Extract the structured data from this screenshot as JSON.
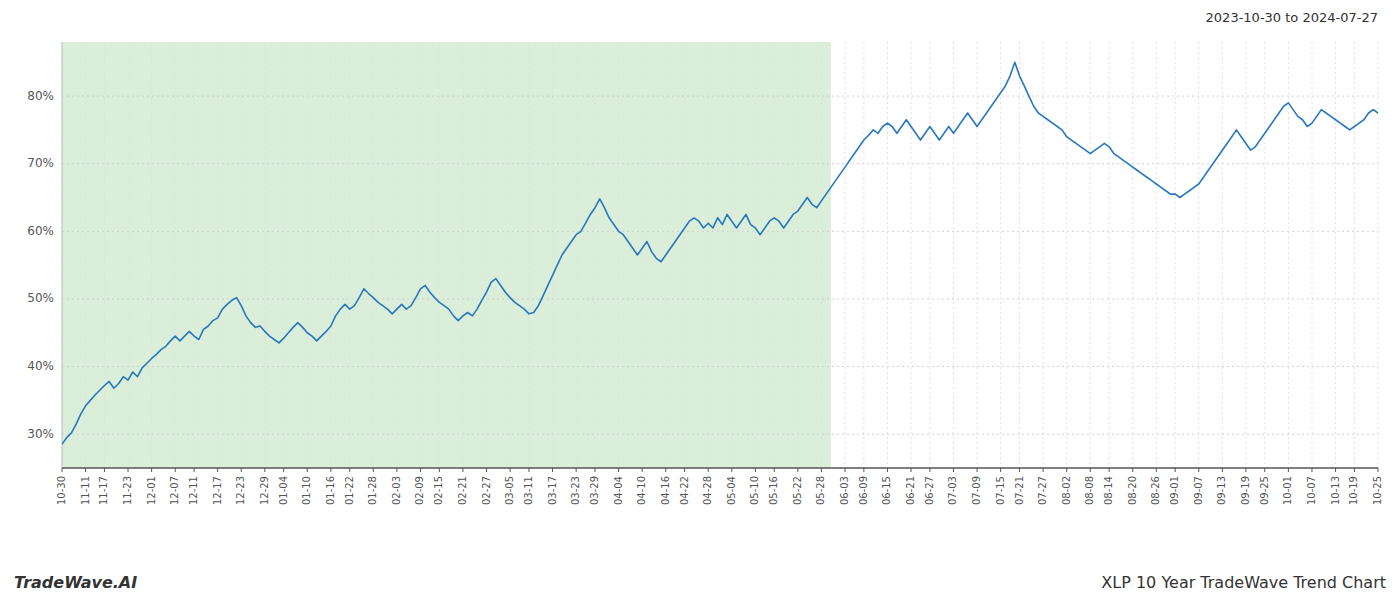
{
  "chart_data": {
    "type": "line",
    "title": "2023-10-30 to 2024-07-27",
    "annotations": [
      "TradeWave.AI",
      "XLP 10 Year TradeWave Trend Chart"
    ],
    "color": "#2878be",
    "grid": true,
    "ylim": [
      25,
      88
    ],
    "yticks": [
      {
        "value": 30,
        "label": "30%"
      },
      {
        "value": 40,
        "label": "40%"
      },
      {
        "value": 50,
        "label": "50%"
      },
      {
        "value": 60,
        "label": "60%"
      },
      {
        "value": 70,
        "label": "70%"
      },
      {
        "value": 80,
        "label": "80%"
      }
    ],
    "shaded": {
      "from": 0,
      "to": 163,
      "color": "#daeeda"
    },
    "categories": [
      "10-30",
      null,
      null,
      null,
      null,
      "11-11",
      null,
      null,
      null,
      "11-17",
      null,
      null,
      null,
      null,
      "11-23",
      null,
      null,
      null,
      null,
      "12-01",
      null,
      null,
      null,
      null,
      "12-07",
      null,
      null,
      null,
      "12-11",
      null,
      null,
      null,
      null,
      "12-17",
      null,
      null,
      null,
      null,
      "12-23",
      null,
      null,
      null,
      null,
      "12-29",
      null,
      null,
      null,
      "01-04",
      null,
      null,
      null,
      null,
      "01-10",
      null,
      null,
      null,
      null,
      "01-16",
      null,
      null,
      null,
      "01-22",
      null,
      null,
      null,
      null,
      "01-28",
      null,
      null,
      null,
      null,
      "02-03",
      null,
      null,
      null,
      null,
      "02-09",
      null,
      null,
      null,
      "02-15",
      null,
      null,
      null,
      null,
      "02-21",
      null,
      null,
      null,
      null,
      "02-27",
      null,
      null,
      null,
      null,
      "03-05",
      null,
      null,
      null,
      "03-11",
      null,
      null,
      null,
      null,
      "03-17",
      null,
      null,
      null,
      null,
      "03-23",
      null,
      null,
      null,
      "03-29",
      null,
      null,
      null,
      null,
      "04-04",
      null,
      null,
      null,
      null,
      "04-10",
      null,
      null,
      null,
      null,
      "04-16",
      null,
      null,
      null,
      "04-22",
      null,
      null,
      null,
      null,
      "04-28",
      null,
      null,
      null,
      null,
      "05-04",
      null,
      null,
      null,
      null,
      "05-10",
      null,
      null,
      null,
      "05-16",
      null,
      null,
      null,
      null,
      "05-22",
      null,
      null,
      null,
      null,
      "05-28",
      null,
      null,
      null,
      null,
      "06-03",
      null,
      null,
      null,
      "06-09",
      null,
      null,
      null,
      null,
      "06-15",
      null,
      null,
      null,
      null,
      "06-21",
      null,
      null,
      null,
      "06-27",
      null,
      null,
      null,
      null,
      "07-03",
      null,
      null,
      null,
      null,
      "07-09",
      null,
      null,
      null,
      null,
      "07-15",
      null,
      null,
      null,
      "07-21",
      null,
      null,
      null,
      null,
      "07-27",
      null,
      null,
      null,
      null,
      "08-02",
      null,
      null,
      null,
      null,
      "08-08",
      null,
      null,
      null,
      "08-14",
      null,
      null,
      null,
      null,
      "08-20",
      null,
      null,
      null,
      null,
      "08-26",
      null,
      null,
      null,
      "09-01",
      null,
      null,
      null,
      null,
      "09-07",
      null,
      null,
      null,
      null,
      "09-13",
      null,
      null,
      null,
      null,
      "09-19",
      null,
      null,
      null,
      "09-25",
      null,
      null,
      null,
      null,
      "10-01",
      null,
      null,
      null,
      null,
      "10-07",
      null,
      null,
      null,
      null,
      "10-13",
      null,
      null,
      null,
      "10-19",
      null,
      null,
      null,
      null,
      "10-25"
    ],
    "values": [
      28.5,
      29.5,
      30.2,
      31.5,
      33.0,
      34.2,
      35.0,
      35.8,
      36.5,
      37.2,
      37.8,
      36.8,
      37.5,
      38.5,
      38.0,
      39.2,
      38.5,
      39.8,
      40.5,
      41.2,
      41.8,
      42.5,
      43.0,
      43.8,
      44.5,
      43.8,
      44.5,
      45.2,
      44.5,
      44.0,
      45.5,
      46.0,
      46.8,
      47.2,
      48.5,
      49.2,
      49.8,
      50.2,
      49.0,
      47.5,
      46.5,
      45.8,
      46.0,
      45.2,
      44.5,
      44.0,
      43.5,
      44.2,
      45.0,
      45.8,
      46.5,
      45.8,
      45.0,
      44.5,
      43.8,
      44.5,
      45.2,
      46.0,
      47.5,
      48.5,
      49.2,
      48.5,
      49.0,
      50.2,
      51.5,
      50.8,
      50.2,
      49.5,
      49.0,
      48.5,
      47.8,
      48.5,
      49.2,
      48.5,
      49.0,
      50.2,
      51.5,
      52.0,
      51.0,
      50.2,
      49.5,
      49.0,
      48.5,
      47.5,
      46.8,
      47.5,
      48.0,
      47.5,
      48.5,
      49.8,
      51.0,
      52.5,
      53.0,
      52.0,
      51.0,
      50.2,
      49.5,
      49.0,
      48.5,
      47.8,
      48.0,
      49.0,
      50.5,
      52.0,
      53.5,
      55.0,
      56.5,
      57.5,
      58.5,
      59.5,
      60.0,
      61.2,
      62.5,
      63.5,
      64.8,
      63.5,
      62.0,
      61.0,
      60.0,
      59.5,
      58.5,
      57.5,
      56.5,
      57.5,
      58.5,
      57.0,
      56.0,
      55.5,
      56.5,
      57.5,
      58.5,
      59.5,
      60.5,
      61.5,
      62.0,
      61.5,
      60.5,
      61.2,
      60.5,
      62.0,
      61.0,
      62.5,
      61.5,
      60.5,
      61.5,
      62.5,
      61.0,
      60.5,
      59.5,
      60.5,
      61.5,
      62.0,
      61.5,
      60.5,
      61.5,
      62.5,
      63.0,
      64.0,
      65.0,
      64.0,
      63.5,
      64.5,
      65.5,
      66.5,
      67.5,
      68.5,
      69.5,
      70.5,
      71.5,
      72.5,
      73.5,
      74.2,
      75.0,
      74.5,
      75.5,
      76.0,
      75.5,
      74.5,
      75.5,
      76.5,
      75.5,
      74.5,
      73.5,
      74.5,
      75.5,
      74.5,
      73.5,
      74.5,
      75.5,
      74.5,
      75.5,
      76.5,
      77.5,
      76.5,
      75.5,
      76.5,
      77.5,
      78.5,
      79.5,
      80.5,
      81.5,
      83.0,
      85.0,
      83.0,
      81.5,
      80.0,
      78.5,
      77.5,
      77.0,
      76.5,
      76.0,
      75.5,
      75.0,
      74.0,
      73.5,
      73.0,
      72.5,
      72.0,
      71.5,
      72.0,
      72.5,
      73.0,
      72.5,
      71.5,
      71.0,
      70.5,
      70.0,
      69.5,
      69.0,
      68.5,
      68.0,
      67.5,
      67.0,
      66.5,
      66.0,
      65.5,
      65.5,
      65.0,
      65.5,
      66.0,
      66.5,
      67.0,
      68.0,
      69.0,
      70.0,
      71.0,
      72.0,
      73.0,
      74.0,
      75.0,
      74.0,
      73.0,
      72.0,
      72.5,
      73.5,
      74.5,
      75.5,
      76.5,
      77.5,
      78.5,
      79.0,
      78.0,
      77.0,
      76.5,
      75.5,
      76.0,
      77.0,
      78.0,
      77.5,
      77.0,
      76.5,
      76.0,
      75.5,
      75.0,
      75.5,
      76.0,
      76.5,
      77.5,
      78.0,
      77.5
    ]
  }
}
